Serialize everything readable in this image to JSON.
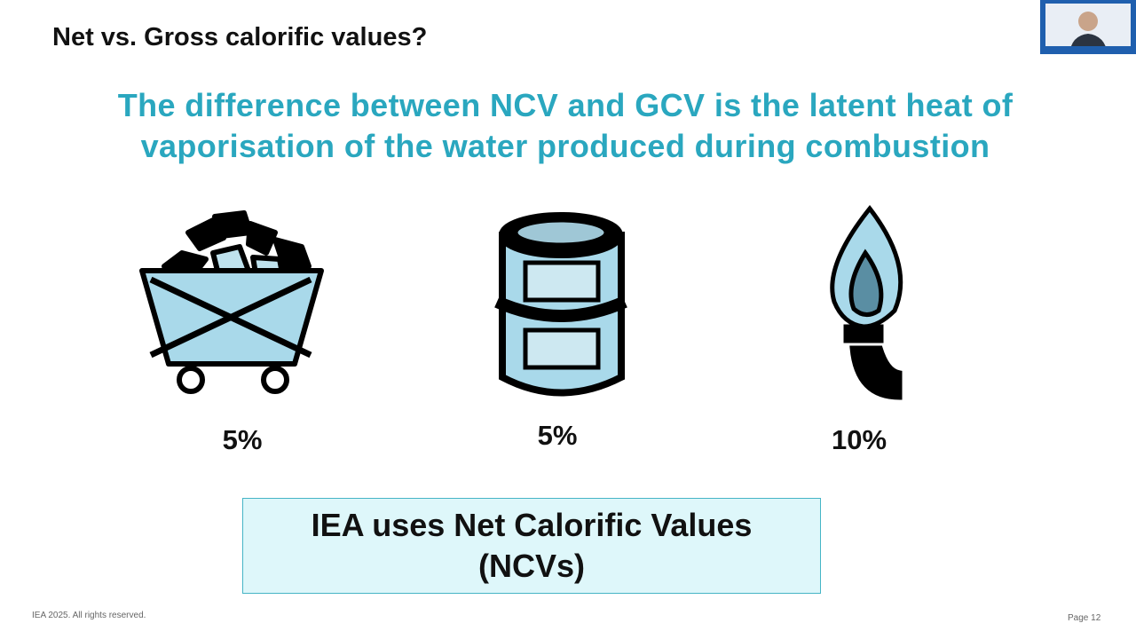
{
  "title": "Net vs. Gross calorific values?",
  "subtitle": "The difference between NCV and GCV is the latent heat of vaporisation of the water produced during combustion",
  "items": [
    {
      "value": "5%"
    },
    {
      "value": "5%"
    },
    {
      "value": "10%"
    }
  ],
  "callout": "IEA uses Net Calorific Values (NCVs)",
  "footer": {
    "left": "IEA 2025. All rights reserved.",
    "right": "Page 12"
  }
}
